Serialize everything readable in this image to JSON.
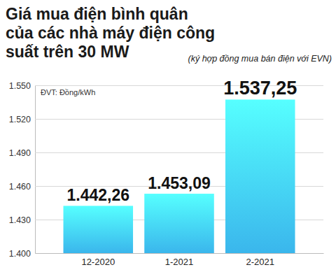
{
  "chart_data": {
    "type": "bar",
    "title": "Giá mua điện bình quân của các nhà máy điện công suất trên 30 MW",
    "subtitle": "(ký hợp đồng mua bán điện với EVN)",
    "ylabel": "ĐVT: Đồng/kWh",
    "categories": [
      "12-2020",
      "1-2021",
      "2-2021"
    ],
    "values": [
      1442.26,
      1453.09,
      1537.25
    ],
    "value_labels": [
      "1.442,26",
      "1.453,09",
      "1.537,25"
    ],
    "data_labels": true,
    "color": "#3ab6ec",
    "ylim": [
      1400,
      1550
    ],
    "yticks": [
      {
        "value": 1400,
        "label": "1.400"
      },
      {
        "value": 1430,
        "label": "1.430"
      },
      {
        "value": 1460,
        "label": "1.460"
      },
      {
        "value": 1490,
        "label": "1.490"
      },
      {
        "value": 1520,
        "label": "1.520"
      },
      {
        "value": 1550,
        "label": "1.550"
      }
    ],
    "grid": true
  }
}
